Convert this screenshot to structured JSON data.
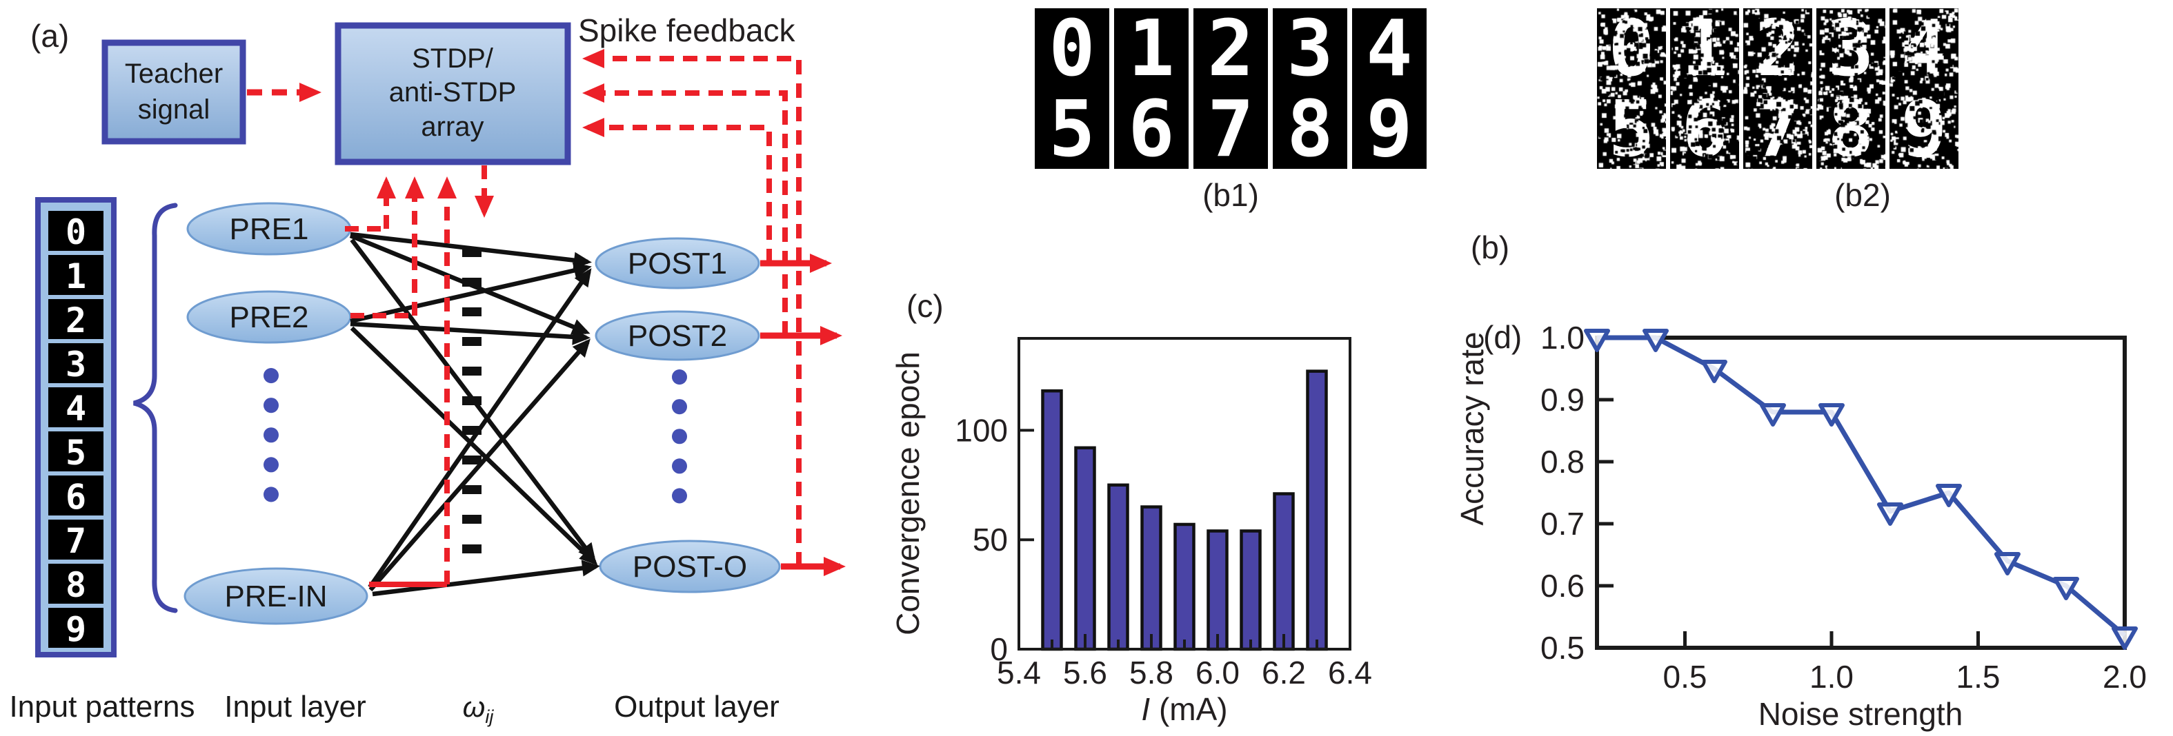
{
  "figure": {
    "panel_a": {
      "label": "(a)",
      "teacher_box": [
        "Teacher",
        "signal"
      ],
      "stdp_box": [
        "STDP/",
        "anti-STDP",
        "array"
      ],
      "spike_feedback": "Spike feedback",
      "input_digits": [
        "0",
        "1",
        "2",
        "3",
        "4",
        "5",
        "6",
        "7",
        "8",
        "9"
      ],
      "input_neurons": [
        "PRE1",
        "PRE2",
        "PRE-IN"
      ],
      "output_neurons": [
        "POST1",
        "POST2",
        "POST-O"
      ],
      "weight_label": "ω",
      "weight_label_sub": "ij",
      "captions": {
        "input_patterns": "Input patterns",
        "input_layer": "Input layer",
        "output_layer": "Output layer"
      }
    },
    "panel_b1": {
      "label": "(b1)",
      "noisy": false,
      "tiles": [
        [
          "0",
          "5"
        ],
        [
          "1",
          "6"
        ],
        [
          "2",
          "7"
        ],
        [
          "3",
          "8"
        ],
        [
          "4",
          "9"
        ]
      ]
    },
    "panel_b2": {
      "label": "(b2)",
      "noisy": true,
      "tiles": [
        [
          "0",
          "5"
        ],
        [
          "1",
          "6"
        ],
        [
          "2",
          "7"
        ],
        [
          "3",
          "8"
        ],
        [
          "4",
          "9"
        ]
      ]
    },
    "panel_b_label": "(b)",
    "colors": {
      "red": "#ec2028",
      "dark_blue_border": "#4146a8",
      "ellipse_fill_top": "#bed6ef",
      "ellipse_fill_bottom": "#8fb6de",
      "dot_blue": "#4450b4",
      "digit_bg": "#000000",
      "digit_fg": "#ffffff",
      "text": "#231f20"
    }
  },
  "chart_data": [
    {
      "type": "bar",
      "panel_label": "(c)",
      "categories_x": [
        5.5,
        5.6,
        5.7,
        5.8,
        5.9,
        6.0,
        6.1,
        6.2,
        6.3
      ],
      "values": [
        118,
        92,
        75,
        65,
        57,
        54,
        54,
        71,
        127
      ],
      "title": "",
      "xlabel": "I (mA)",
      "xlabel_prefix": "I",
      "xlabel_suffix": " (mA)",
      "ylabel": "Convergence epoch",
      "xlim": [
        5.4,
        6.4
      ],
      "ylim": [
        0,
        142
      ],
      "xticklabels": [
        "5.4",
        "5.6",
        "5.8",
        "6.0",
        "6.2",
        "6.4"
      ],
      "yticklabels": [
        "0",
        "50",
        "100"
      ],
      "grid": false,
      "bar_color": "#4a44a5",
      "bar_edge_color": "#111111"
    },
    {
      "type": "line",
      "panel_label": "(d)",
      "x": [
        0.2,
        0.4,
        0.6,
        0.8,
        1.0,
        1.2,
        1.4,
        1.6,
        1.8,
        2.0
      ],
      "y": [
        1.0,
        1.0,
        0.95,
        0.88,
        0.88,
        0.72,
        0.75,
        0.64,
        0.6,
        0.52
      ],
      "title": "",
      "xlabel": "Noise strength",
      "ylabel": "Accuracy rate",
      "xlim": [
        0.2,
        2.0
      ],
      "ylim": [
        0.5,
        1.0
      ],
      "xticklabels": [
        "0.5",
        "1.0",
        "1.5",
        "2.0"
      ],
      "yticklabels": [
        "0.5",
        "0.6",
        "0.7",
        "0.8",
        "0.9",
        "1.0"
      ],
      "grid": false,
      "marker": "open-triangle-down",
      "line_color": "#3552a8"
    }
  ]
}
